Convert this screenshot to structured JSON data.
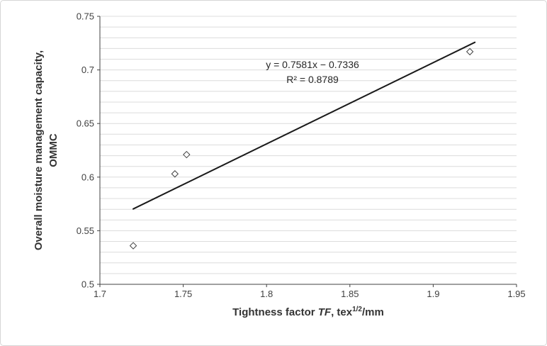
{
  "chart_data": {
    "type": "scatter",
    "title": "",
    "marker": "open-diamond",
    "points": [
      [
        1.72,
        0.536
      ],
      [
        1.745,
        0.603
      ],
      [
        1.752,
        0.621
      ],
      [
        1.922,
        0.717
      ]
    ],
    "trendline": {
      "slope": 0.7581,
      "intercept": -0.7336,
      "x_start": 1.72,
      "x_end": 1.925,
      "equation": "y = 0.7581x − 0.7336",
      "r_squared": "R² = 0.8789"
    },
    "xlim": [
      1.7,
      1.95
    ],
    "ylim": [
      0.5,
      0.75
    ],
    "x_ticks": {
      "values": [
        1.7,
        1.75,
        1.8,
        1.85,
        1.9,
        1.95
      ],
      "labels": [
        "1.7",
        "1.75",
        "1.8",
        "1.85",
        "1.9",
        "1.95"
      ]
    },
    "y_ticks": {
      "values": [
        0.5,
        0.55,
        0.6,
        0.65,
        0.7,
        0.75
      ],
      "labels": [
        "0.5",
        "0.55",
        "0.6",
        "0.65",
        "0.7",
        "0.75"
      ]
    },
    "grid": "horizontal-minor",
    "minor_gridline_step": 0.01,
    "legend": "none",
    "xlabel_parts": [
      "Tightness factor ",
      "TF",
      ", tex",
      "1/2",
      "/mm"
    ],
    "ylabel_lines": [
      "Overall moisture management capacity,",
      "OMMC"
    ],
    "colors": {
      "marker_stroke": "#404040",
      "trendline": "#1a1a1a",
      "gridline": "#dcdcdc",
      "axis": "#404040",
      "text": "#404040"
    }
  }
}
